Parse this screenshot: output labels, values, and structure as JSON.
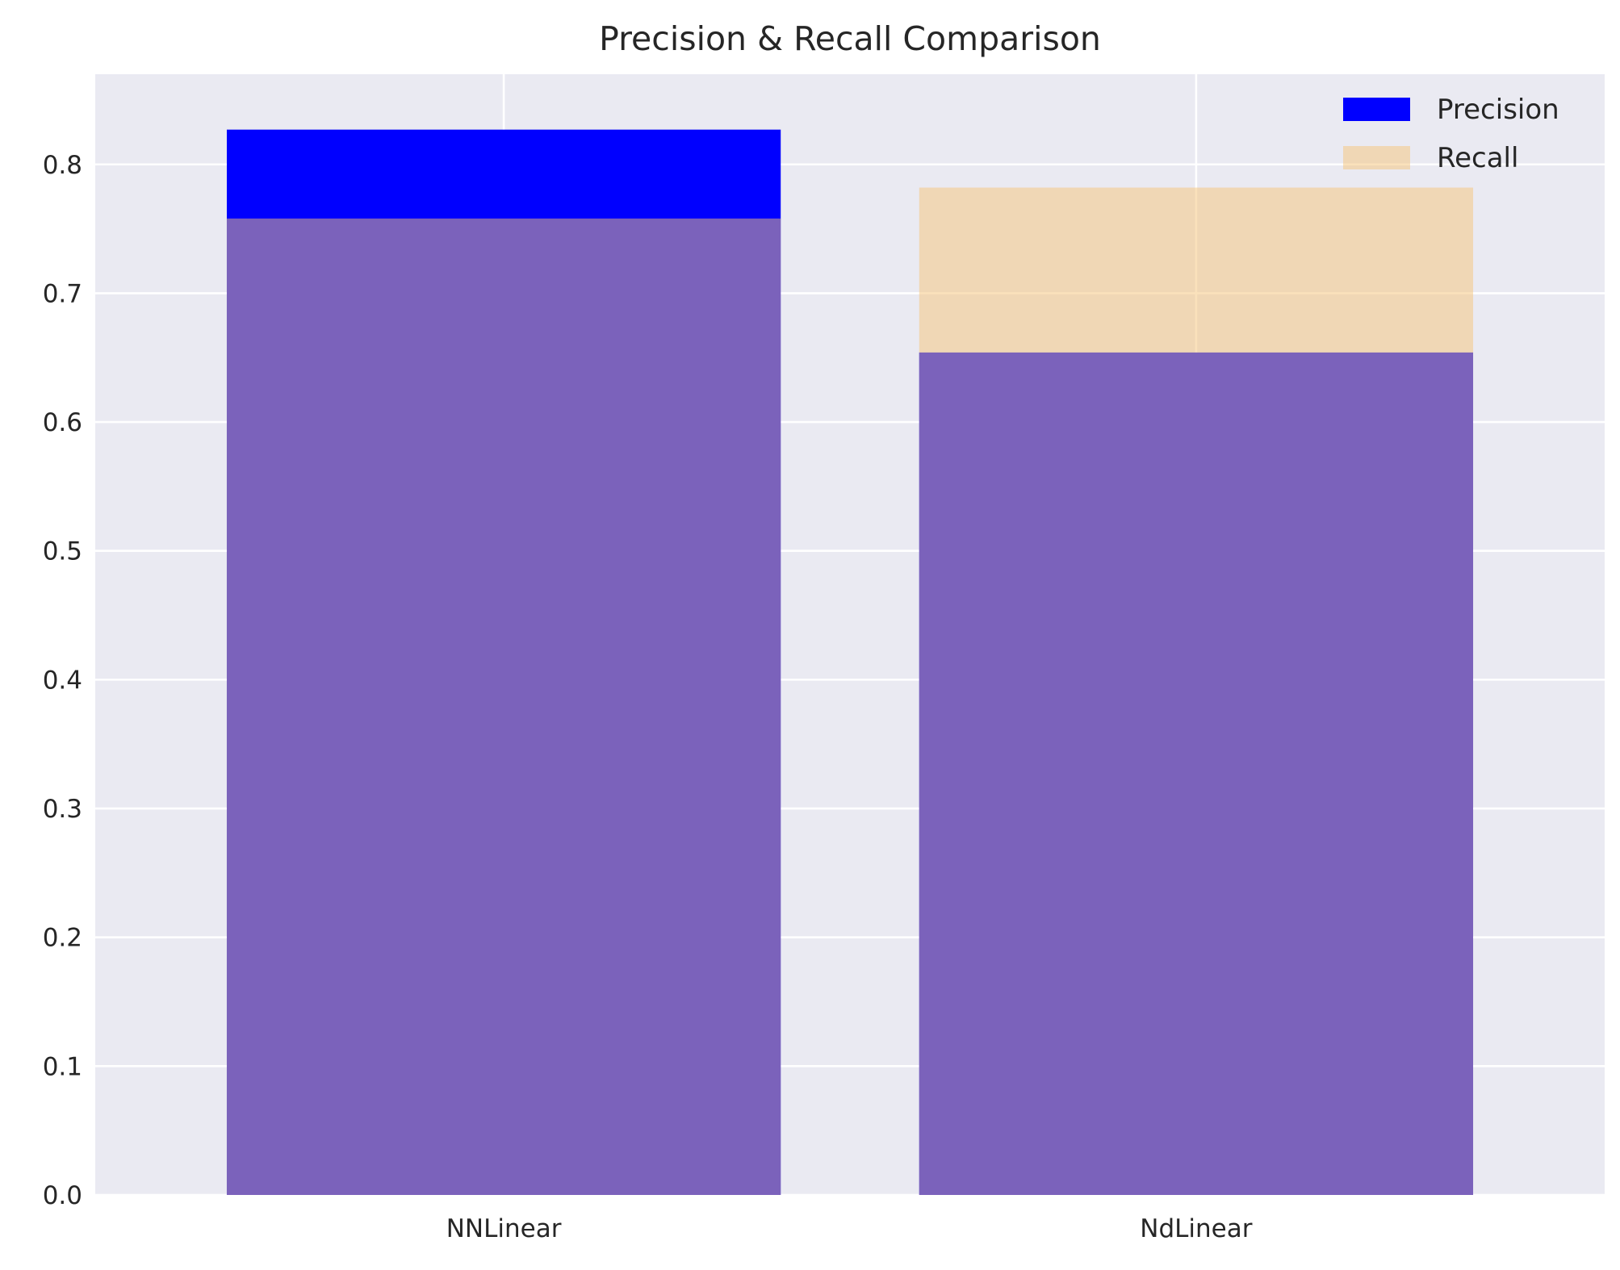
{
  "chart_data": {
    "type": "bar",
    "title": "Precision & Recall Comparison",
    "xlabel": "",
    "ylabel": "",
    "categories": [
      "NNLinear",
      "NdLinear"
    ],
    "series": [
      {
        "name": "Precision",
        "values": [
          0.827,
          0.654
        ],
        "color": "#0000ff"
      },
      {
        "name": "Recall",
        "values": [
          0.758,
          0.782
        ],
        "color": "#f5c477"
      }
    ],
    "overlap_color": "#805580",
    "ylim": [
      0,
      0.87
    ],
    "yticks": [
      "0.0",
      "0.1",
      "0.2",
      "0.3",
      "0.4",
      "0.5",
      "0.6",
      "0.7",
      "0.8"
    ],
    "grid": true,
    "legend_position": "top-right",
    "background": "#eaeaf2",
    "bars_overlaid": true
  }
}
